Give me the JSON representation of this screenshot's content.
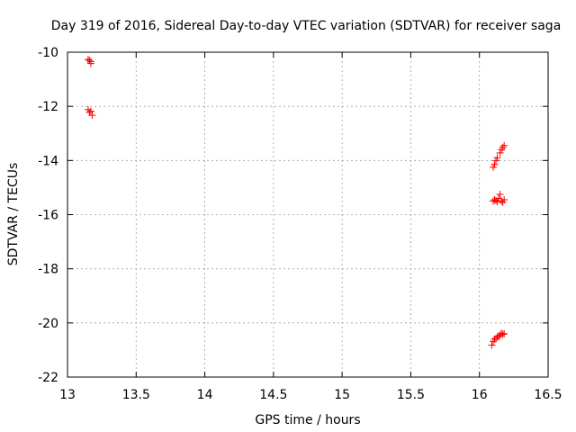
{
  "chart_data": {
    "type": "scatter",
    "title": "Day 319 of 2016, Sidereal Day-to-day VTEC variation (SDTVAR) for receiver saga",
    "xlabel": "GPS time / hours",
    "ylabel": "SDTVAR / TECUs",
    "xlim": [
      13,
      16.5
    ],
    "ylim": [
      -22,
      -10
    ],
    "xticks": [
      13,
      13.5,
      14,
      14.5,
      15,
      15.5,
      16,
      16.5
    ],
    "xtick_labels": [
      "13",
      "13.5",
      "14",
      "14.5",
      "15",
      "15.5",
      "16",
      "16.5"
    ],
    "yticks": [
      -22,
      -20,
      -18,
      -16,
      -14,
      -12,
      -10
    ],
    "ytick_labels": [
      "-22",
      "-20",
      "-18",
      "-16",
      "-14",
      "-12",
      "-10"
    ],
    "grid": true,
    "marker": "+",
    "marker_color": "#ff0000",
    "series": [
      {
        "name": "SDTVAR",
        "points": [
          [
            13.15,
            -10.27
          ],
          [
            13.16,
            -10.3
          ],
          [
            13.17,
            -10.35
          ],
          [
            13.17,
            -10.42
          ],
          [
            13.15,
            -12.12
          ],
          [
            13.16,
            -12.22
          ],
          [
            13.17,
            -12.18
          ],
          [
            13.18,
            -12.33
          ],
          [
            16.1,
            -14.25
          ],
          [
            16.11,
            -14.15
          ],
          [
            16.12,
            -14.0
          ],
          [
            16.13,
            -13.9
          ],
          [
            16.15,
            -13.72
          ],
          [
            16.16,
            -13.6
          ],
          [
            16.17,
            -13.52
          ],
          [
            16.18,
            -13.45
          ],
          [
            16.1,
            -15.5
          ],
          [
            16.11,
            -15.45
          ],
          [
            16.12,
            -15.48
          ],
          [
            16.13,
            -15.52
          ],
          [
            16.14,
            -15.4
          ],
          [
            16.15,
            -15.25
          ],
          [
            16.16,
            -15.5
          ],
          [
            16.17,
            -15.55
          ],
          [
            16.18,
            -15.45
          ],
          [
            16.09,
            -20.82
          ],
          [
            16.1,
            -20.68
          ],
          [
            16.11,
            -20.6
          ],
          [
            16.12,
            -20.58
          ],
          [
            16.13,
            -20.52
          ],
          [
            16.14,
            -20.5
          ],
          [
            16.15,
            -20.45
          ],
          [
            16.16,
            -20.38
          ],
          [
            16.17,
            -20.42
          ],
          [
            16.18,
            -20.4
          ]
        ]
      }
    ]
  }
}
